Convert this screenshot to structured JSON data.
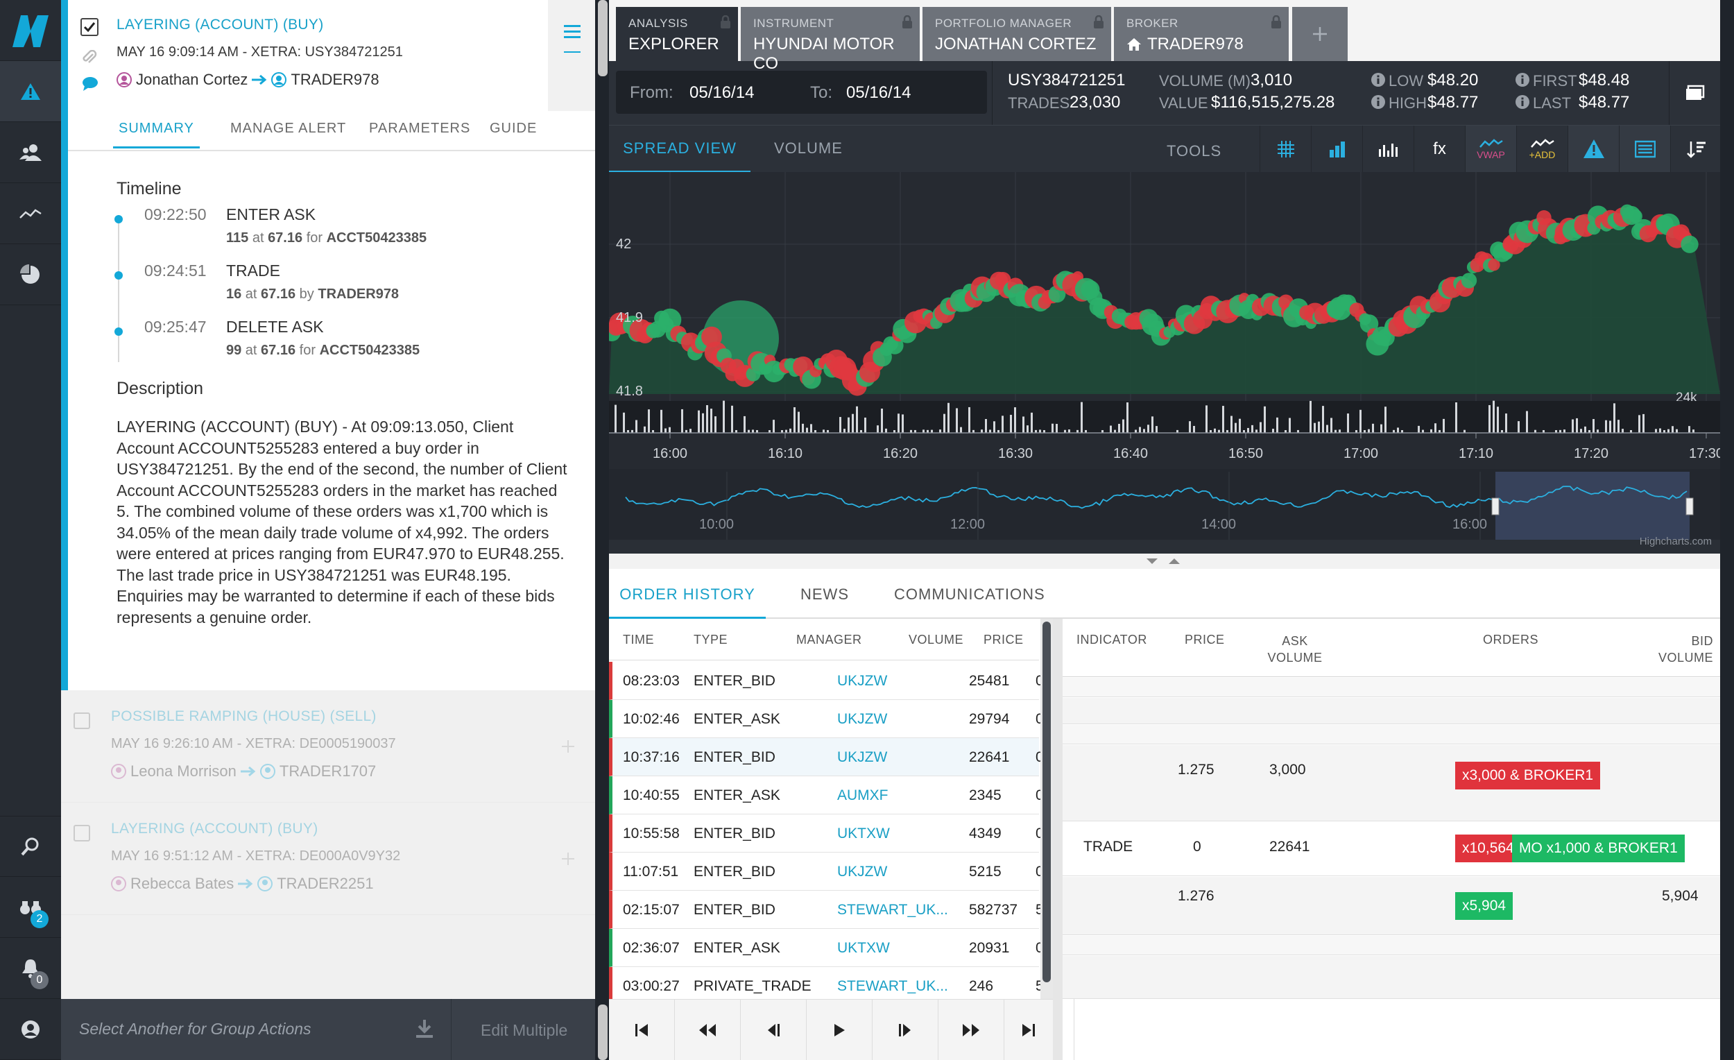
{
  "rail": {
    "items": [
      "logo",
      "alerts",
      "users",
      "analytics",
      "reports"
    ],
    "bottom": [
      "search",
      "watch",
      "notifications",
      "profile"
    ],
    "watch_badge": "2",
    "notif_badge": "0"
  },
  "alert_primary": {
    "title": "LAYERING (ACCOUNT) (BUY)",
    "meta": "MAY 16 9:09:14 AM - XETRA: USY384721251",
    "from": "Jonathan Cortez",
    "to": "TRADER978",
    "tabs": [
      "SUMMARY",
      "MANAGE ALERT",
      "PARAMETERS",
      "GUIDE"
    ],
    "timeline_heading": "Timeline",
    "timeline": [
      {
        "time": "09:22:50",
        "action": "ENTER ASK",
        "qty": "115",
        "price": "67.16",
        "conj": "for",
        "who": "ACCT50423385"
      },
      {
        "time": "09:24:51",
        "action": "TRADE",
        "qty": "16",
        "price": "67.16",
        "conj": "by",
        "who": "TRADER978"
      },
      {
        "time": "09:25:47",
        "action": "DELETE ASK",
        "qty": "99",
        "price": "67.16",
        "conj": "for",
        "who": "ACCT50423385"
      }
    ],
    "desc_heading": "Description",
    "description": "LAYERING (ACCOUNT) (BUY) - At 09:09:13.050, Client Account ACCOUNT5255283 entered a buy order in USY384721251. By the end of the second, the number of Client Account ACCOUNT5255283 orders in the market has reached 5. The combined volume of these orders was x1,700 which is 34.05% of the mean daily trade volume of x4,992. The orders were entered at prices ranging from EUR47.970 to EUR48.255. The last trade price in USY384721251 was EUR48.195. Enquiries may be warranted to determine if each of these bids represents a genuine order."
  },
  "alerts_other": [
    {
      "title": "POSSIBLE RAMPING (HOUSE) (SELL)",
      "meta": "MAY 16 9:26:10 AM - XETRA: DE0005190037",
      "from": "Leona Morrison",
      "to": "TRADER1707"
    },
    {
      "title": "LAYERING (ACCOUNT) (BUY)",
      "meta": "MAY 16 9:51:12 AM - XETRA: DE000A0V9Y32",
      "from": "Rebecca Bates",
      "to": "TRADER2251"
    }
  ],
  "group": {
    "placeholder": "Select Another for Group Actions",
    "edit": "Edit Multiple"
  },
  "context_tabs": [
    {
      "label": "ANALYSIS",
      "value": "EXPLORER"
    },
    {
      "label": "INSTRUMENT",
      "value": "HYUNDAI MOTOR CO"
    },
    {
      "label": "PORTFOLIO MANAGER",
      "value": "JONATHAN CORTEZ"
    },
    {
      "label": "BROKER",
      "value": "TRADER978"
    }
  ],
  "stats": {
    "from_label": "From:",
    "from": "05/16/14",
    "to_label": "To:",
    "to": "05/16/14",
    "instrument": "USY384721251",
    "trades_label": "TRADES",
    "trades": "23,030",
    "volume_label": "VOLUME (M)",
    "volume": "3,010",
    "value_label": "VALUE",
    "value": "$116,515,275.28",
    "low_label": "LOW",
    "low": "$48.20",
    "high_label": "HIGH",
    "high": "$48.77",
    "first_label": "FIRST",
    "first": "$48.48",
    "last_label": "LAST",
    "last": "$48.77"
  },
  "chart_tabs": [
    "SPREAD VIEW",
    "VOLUME"
  ],
  "tools": {
    "label": "TOOLS",
    "vwap": "VWAP",
    "add": "+ADD",
    "fx": "fx"
  },
  "chart_data": {
    "type": "line",
    "ylabels": [
      "42",
      "41.9",
      "41.8"
    ],
    "vol_label": "24k",
    "xticks": [
      "16:00",
      "16:10",
      "16:20",
      "16:30",
      "16:40",
      "16:50",
      "17:00",
      "17:10",
      "17:20",
      "17:30"
    ],
    "price": [
      41.88,
      41.89,
      41.87,
      41.9,
      41.88,
      41.86,
      41.87,
      41.83,
      41.82,
      41.84,
      41.83,
      41.83,
      41.82,
      41.84,
      41.83,
      41.81,
      41.85,
      41.87,
      41.89,
      41.9,
      41.9,
      41.93,
      41.93,
      41.95,
      41.94,
      41.93,
      41.92,
      41.94,
      41.95,
      41.93,
      41.9,
      41.89,
      41.9,
      41.88,
      41.89,
      41.9,
      41.91,
      41.9,
      41.92,
      41.91,
      41.92,
      41.91,
      41.9,
      41.91,
      41.92,
      41.9,
      41.87,
      41.89,
      41.9,
      41.92,
      41.93,
      41.94,
      41.97,
      41.98,
      42.0,
      42.02,
      42.03,
      42.01,
      42.02,
      42.03,
      42.03,
      42.04,
      42.02,
      42.03,
      42.01,
      42.0
    ],
    "navigator_ticks": [
      "10:00",
      "12:00",
      "14:00",
      "16:00"
    ],
    "credit": "Highcharts.com"
  },
  "bottom_tabs": [
    "ORDER HISTORY",
    "NEWS",
    "COMMUNICATIONS"
  ],
  "order_cols": [
    "TIME",
    "TYPE",
    "MANAGER",
    "VOLUME",
    "PRICE"
  ],
  "orders": [
    {
      "time": "08:23:03",
      "type": "ENTER_BID",
      "mgr": "UKJZW",
      "vol": "25481",
      "price": "0",
      "side": "bid"
    },
    {
      "time": "10:02:46",
      "type": "ENTER_ASK",
      "mgr": "UKJZW",
      "vol": "29794",
      "price": "0",
      "side": "ask"
    },
    {
      "time": "10:37:16",
      "type": "ENTER_BID",
      "mgr": "UKJZW",
      "vol": "22641",
      "price": "0",
      "side": "bid"
    },
    {
      "time": "10:40:55",
      "type": "ENTER_ASK",
      "mgr": "AUMXF",
      "vol": "2345",
      "price": "0",
      "side": "ask"
    },
    {
      "time": "10:55:58",
      "type": "ENTER_BID",
      "mgr": "UKTXW",
      "vol": "4349",
      "price": "0",
      "side": "bid"
    },
    {
      "time": "11:07:51",
      "type": "ENTER_BID",
      "mgr": "UKJZW",
      "vol": "5215",
      "price": "0",
      "side": "bid"
    },
    {
      "time": "02:15:07",
      "type": "ENTER_BID",
      "mgr": "STEWART_UK...",
      "vol": "582737",
      "price": "5",
      "side": "bid"
    },
    {
      "time": "02:36:07",
      "type": "ENTER_ASK",
      "mgr": "UKTXW",
      "vol": "20931",
      "price": "0",
      "side": "ask"
    },
    {
      "time": "03:00:27",
      "type": "PRIVATE_TRADE",
      "mgr": "STEWART_UK...",
      "vol": "246",
      "price": "5",
      "side": "bid"
    }
  ],
  "ladder_cols": {
    "indicator": "INDICATOR",
    "price": "PRICE",
    "ask1": "ASK",
    "ask2": "VOLUME",
    "orders": "ORDERS",
    "bid1": "BID",
    "bid2": "VOLUME"
  },
  "ladder": {
    "r1": {
      "price": "1.275",
      "ask": "3,000",
      "chip": "x3,000 & BROKER1"
    },
    "r2": {
      "ind": "TRADE",
      "price": "0",
      "ask": "22641",
      "chip1": "x10,564",
      "chip2": "MO x1,000 & BROKER1"
    },
    "r3": {
      "price": "1.276",
      "chip": "x5,904",
      "bid": "5,904"
    }
  }
}
